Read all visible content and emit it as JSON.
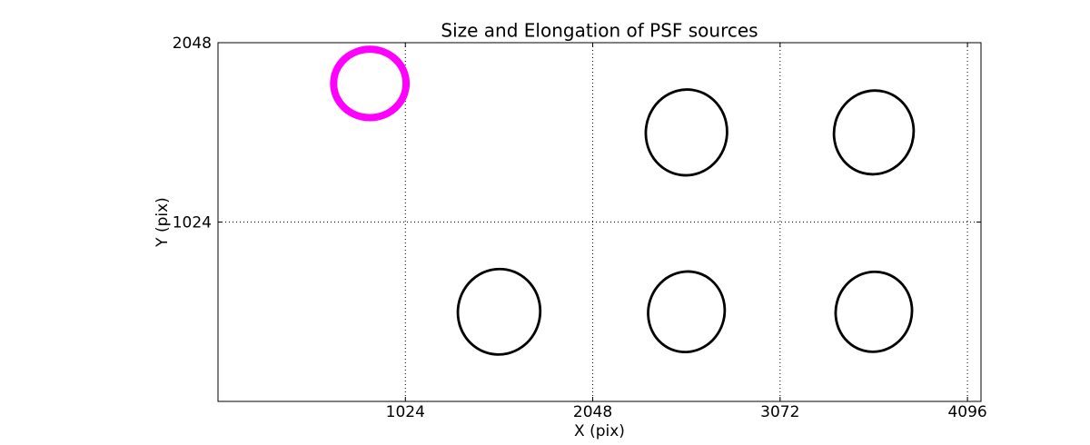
{
  "chart_data": {
    "type": "scatter",
    "marker": "ellipse",
    "title": "Size and Elongation of PSF sources",
    "xlabel": "X (pix)",
    "ylabel": "Y (pix)",
    "xlim": [
      0,
      4170
    ],
    "ylim": [
      0,
      2048
    ],
    "xticks": [
      1024,
      2048,
      3072,
      4096
    ],
    "yticks": [
      1024,
      2048
    ],
    "grid": {
      "on": true,
      "style": "dotted",
      "color": "#000000"
    },
    "colors": {
      "highlight": "#ff00ff",
      "normal": "#000000",
      "axes": "#000000",
      "background": "#ffffff"
    },
    "ellipses": [
      {
        "x": 830,
        "y": 1815,
        "rx": 198,
        "ry": 195,
        "angle": 0,
        "color": "#ff00ff",
        "stroke_width": 8
      },
      {
        "x": 2560,
        "y": 1536,
        "rx": 222,
        "ry": 245,
        "angle": 8,
        "color": "#000000",
        "stroke_width": 2.8
      },
      {
        "x": 3584,
        "y": 1536,
        "rx": 217,
        "ry": 240,
        "angle": 15,
        "color": "#000000",
        "stroke_width": 2.8
      },
      {
        "x": 1536,
        "y": 512,
        "rx": 225,
        "ry": 244,
        "angle": 10,
        "color": "#000000",
        "stroke_width": 2.8
      },
      {
        "x": 2560,
        "y": 512,
        "rx": 208,
        "ry": 231,
        "angle": 18,
        "color": "#000000",
        "stroke_width": 2.8
      },
      {
        "x": 3584,
        "y": 512,
        "rx": 208,
        "ry": 229,
        "angle": 15,
        "color": "#000000",
        "stroke_width": 2.8
      }
    ]
  }
}
